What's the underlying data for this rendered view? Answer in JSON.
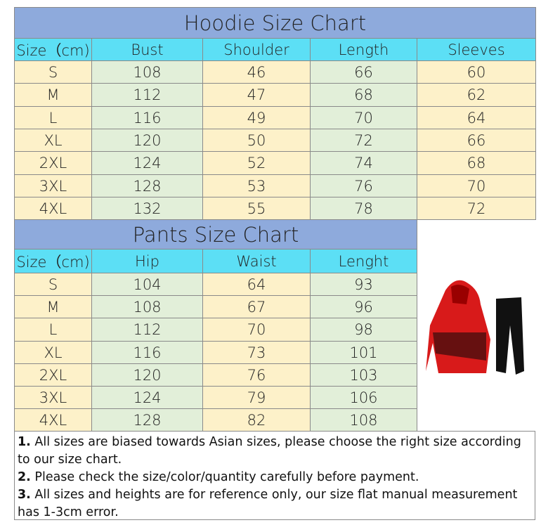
{
  "hoodie": {
    "title": "Hoodie Size Chart",
    "headers": [
      "Size（cm)",
      "Bust",
      "Shoulder",
      "Length",
      "Sleeves"
    ],
    "rows": [
      [
        "S",
        "108",
        "46",
        "66",
        "60"
      ],
      [
        "M",
        "112",
        "47",
        "68",
        "62"
      ],
      [
        "L",
        "116",
        "49",
        "70",
        "64"
      ],
      [
        "XL",
        "120",
        "50",
        "72",
        "66"
      ],
      [
        "2XL",
        "124",
        "52",
        "74",
        "68"
      ],
      [
        "3XL",
        "128",
        "53",
        "76",
        "70"
      ],
      [
        "4XL",
        "132",
        "55",
        "78",
        "72"
      ]
    ]
  },
  "pants": {
    "title": "Pants Size Chart",
    "headers": [
      "Size（cm)",
      "Hip",
      "Waist",
      "Lenght"
    ],
    "rows": [
      [
        "S",
        "104",
        "64",
        "93"
      ],
      [
        "M",
        "108",
        "67",
        "96"
      ],
      [
        "L",
        "112",
        "70",
        "98"
      ],
      [
        "XL",
        "116",
        "73",
        "101"
      ],
      [
        "2XL",
        "120",
        "76",
        "103"
      ],
      [
        "3XL",
        "124",
        "79",
        "106"
      ],
      [
        "4XL",
        "128",
        "82",
        "108"
      ]
    ]
  },
  "notes": [
    {
      "number": "1.",
      "text": "All sizes are biased towards Asian sizes, please choose the right size according to our size chart."
    },
    {
      "number": "2.",
      "text": "Please check the size/color/quantity carefully before payment."
    },
    {
      "number": "3.",
      "text": "All sizes and heights are for reference only, our size flat manual measurement has 1-3cm error."
    }
  ]
}
